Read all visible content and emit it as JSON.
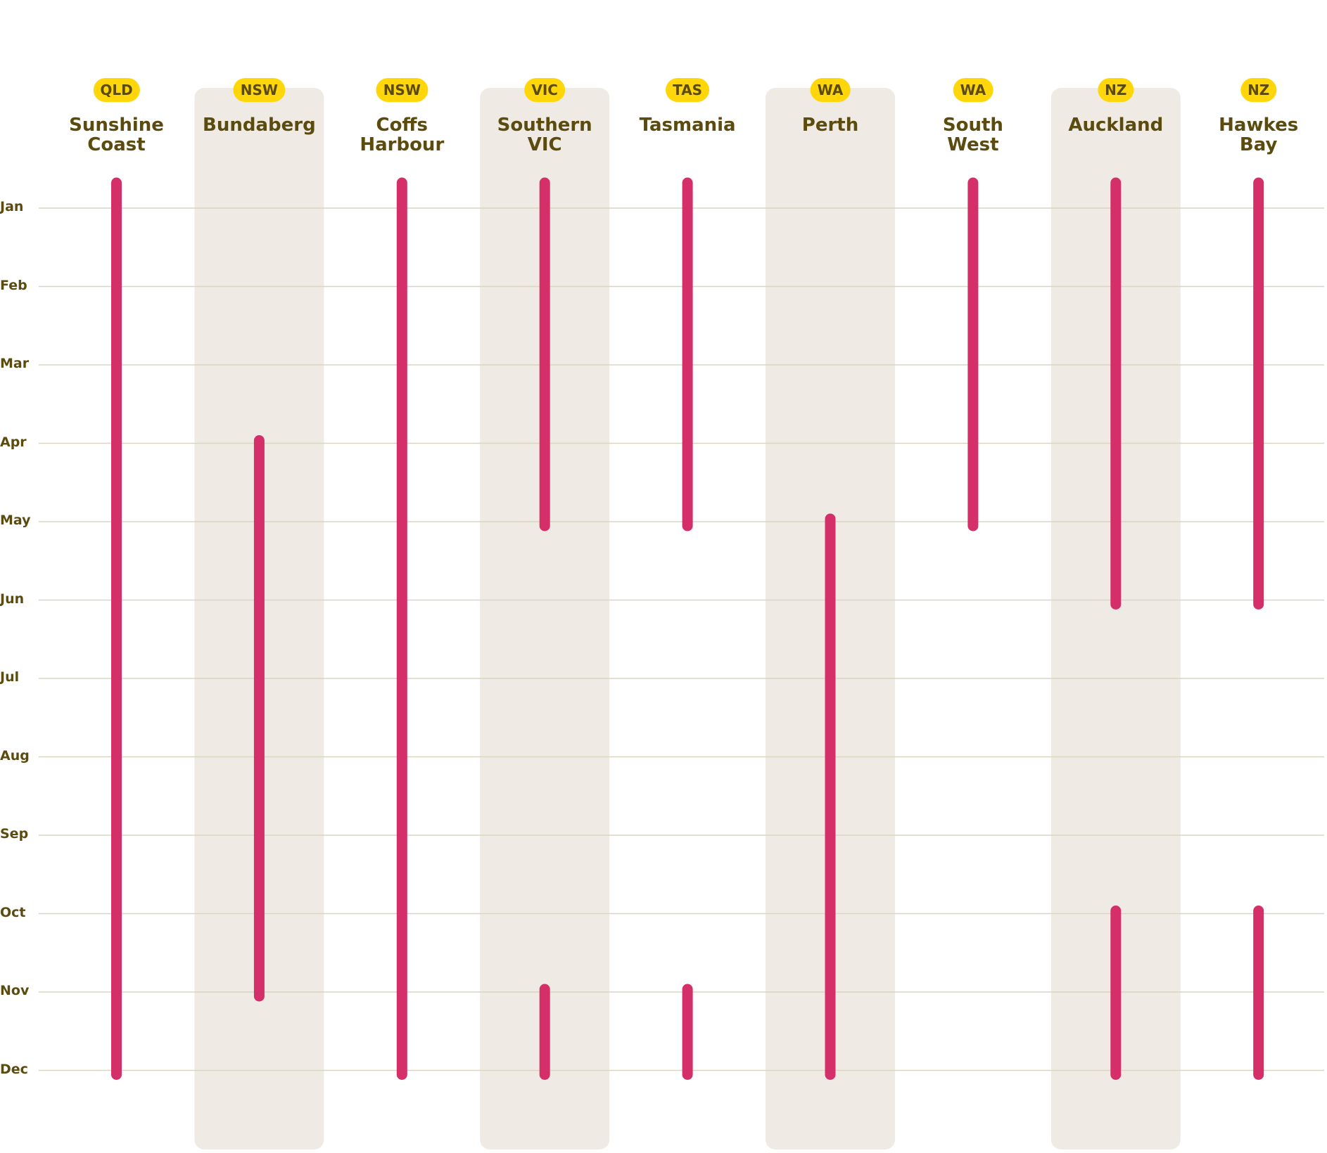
{
  "chart_data": {
    "type": "range",
    "categories": [
      "Jan",
      "Feb",
      "Mar",
      "Apr",
      "May",
      "Jun",
      "Jul",
      "Aug",
      "Sep",
      "Oct",
      "Nov",
      "Dec"
    ],
    "color": "#d42f68",
    "columns": [
      {
        "badge": "QLD",
        "name": "Sunshine Coast",
        "ranges": [
          [
            "Jan",
            "Dec"
          ]
        ]
      },
      {
        "badge": "NSW",
        "name": "Bundaberg",
        "ranges": [
          [
            "Apr",
            "Nov"
          ]
        ]
      },
      {
        "badge": "NSW",
        "name": "Coffs Harbour",
        "ranges": [
          [
            "Jan",
            "Dec"
          ]
        ]
      },
      {
        "badge": "VIC",
        "name": "Southern VIC",
        "ranges": [
          [
            "Jan",
            "May"
          ],
          [
            "Nov",
            "Dec"
          ]
        ]
      },
      {
        "badge": "TAS",
        "name": "Tasmania",
        "ranges": [
          [
            "Jan",
            "May"
          ],
          [
            "Nov",
            "Dec"
          ]
        ]
      },
      {
        "badge": "WA",
        "name": "Perth",
        "ranges": [
          [
            "May",
            "Dec"
          ]
        ]
      },
      {
        "badge": "WA",
        "name": "South West",
        "ranges": [
          [
            "Jan",
            "May"
          ]
        ]
      },
      {
        "badge": "NZ",
        "name": "Auckland",
        "ranges": [
          [
            "Jan",
            "Jun"
          ],
          [
            "Oct",
            "Dec"
          ]
        ]
      },
      {
        "badge": "NZ",
        "name": "Hawkes Bay",
        "ranges": [
          [
            "Jan",
            "Jun"
          ],
          [
            "Oct",
            "Dec"
          ]
        ]
      }
    ]
  }
}
